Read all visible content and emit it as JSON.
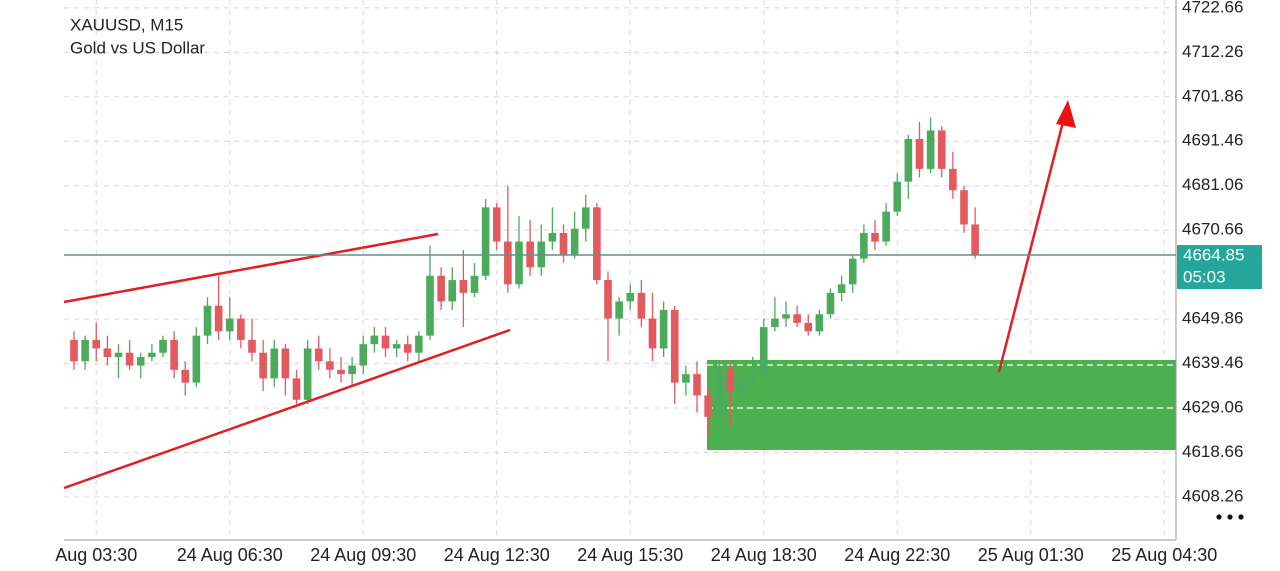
{
  "chart_data": {
    "type": "candlestick",
    "title": "XAUUSD, M15",
    "subtitle": "Gold vs US Dollar",
    "categories": [
      null,
      null,
      "Aug 03:30",
      null,
      null,
      null,
      null,
      null,
      null,
      null,
      null,
      null,
      null,
      null,
      "24 Aug 06:30",
      null,
      null,
      null,
      null,
      null,
      null,
      null,
      null,
      null,
      null,
      null,
      "24 Aug 09:30",
      null,
      null,
      null,
      null,
      null,
      null,
      null,
      null,
      null,
      null,
      null,
      "24 Aug 12:30",
      null,
      null,
      null,
      null,
      null,
      null,
      null,
      null,
      null,
      null,
      null,
      "24 Aug 15:30",
      null,
      null,
      null,
      null,
      null,
      null,
      null,
      null,
      null,
      null,
      null,
      "24 Aug 18:30",
      null,
      null,
      null,
      null,
      null,
      null,
      null,
      null,
      null,
      null,
      null,
      "24 Aug 22:30",
      null,
      null,
      null,
      null,
      null,
      null,
      null,
      null,
      null,
      null,
      null,
      "25 Aug 01:30",
      null,
      null,
      null,
      null,
      null,
      null,
      null,
      null,
      null,
      null,
      null,
      "25 Aug 04:30"
    ],
    "open": [
      4645,
      4640,
      4645,
      4643,
      4641,
      4642,
      4639,
      4641,
      4642,
      4645,
      4638,
      4635,
      4646,
      4653,
      4647,
      4650,
      4645,
      4642,
      4636,
      4643,
      4636,
      4631,
      4643,
      4640,
      4638,
      4637,
      4639,
      4644,
      4646,
      4643,
      4644,
      4642,
      4646,
      4660,
      4654,
      4659,
      4656,
      4660,
      4676,
      4668,
      4658,
      4668,
      4662,
      4668,
      4670,
      4665,
      4671,
      4676,
      4659,
      4650,
      4654,
      4656,
      4650,
      4643,
      4652,
      4635,
      4637,
      4632,
      4627,
      4638,
      4633,
      4636,
      4637,
      4648,
      4650,
      4651,
      4649,
      4647,
      4651,
      4656,
      4658,
      4664,
      4670,
      4668,
      4675,
      4682,
      4692,
      4685,
      4694,
      4685,
      4680,
      4672,
      null,
      null,
      null,
      null,
      null,
      null,
      null,
      null,
      null,
      null,
      null,
      null,
      null,
      null,
      null,
      null,
      null
    ],
    "high": [
      4647,
      4646,
      4649,
      4646,
      4644,
      4645,
      4642,
      4644,
      4646,
      4647,
      4640,
      4648,
      4655,
      4660,
      4655,
      4651,
      4650,
      4645,
      4645,
      4644,
      4638,
      4645,
      4646,
      4643,
      4641,
      4641,
      4646,
      4648,
      4648,
      4645,
      4646,
      4647,
      4667,
      4662,
      4662,
      4666,
      4663,
      4678,
      4677,
      4681,
      4674,
      4673,
      4672,
      4676,
      4672,
      4675,
      4679,
      4677,
      4661,
      4655,
      4658,
      4659,
      4656,
      4654,
      4653,
      4639,
      4640,
      4634,
      4640,
      4640,
      4638,
      4641,
      4650,
      4655,
      4654,
      4653,
      4651,
      4652,
      4657,
      4660,
      4665,
      4672,
      4673,
      4677,
      4684,
      4693,
      4696,
      4697,
      4695,
      4689,
      4681,
      4676,
      null,
      null,
      null,
      null,
      null,
      null,
      null,
      null,
      null,
      null,
      null,
      null,
      null,
      null,
      null,
      null,
      null
    ],
    "low": [
      4638,
      4638,
      4640,
      4639,
      4636,
      4638,
      4636,
      4640,
      4641,
      4636,
      4632,
      4634,
      4644,
      4645,
      4645,
      4643,
      4640,
      4633,
      4634,
      4632,
      4630,
      4630,
      4638,
      4636,
      4635,
      4634,
      4637,
      4642,
      4641,
      4641,
      4640,
      4640,
      4645,
      4652,
      4652,
      4648,
      4655,
      4659,
      4666,
      4656,
      4657,
      4660,
      4660,
      4666,
      4663,
      4664,
      4668,
      4658,
      4640,
      4646,
      4652,
      4648,
      4640,
      4641,
      4630,
      4632,
      4628,
      4622,
      4626,
      4625,
      4630,
      4634,
      4636,
      4647,
      4648,
      4648,
      4646,
      4646,
      4650,
      4654,
      4656,
      4663,
      4666,
      4667,
      4674,
      4678,
      4683,
      4684,
      4683,
      4678,
      4670,
      4664,
      null,
      null,
      null,
      null,
      null,
      null,
      null,
      null,
      null,
      null,
      null,
      null,
      null,
      null,
      null,
      null,
      null
    ],
    "close": [
      4640,
      4645,
      4643,
      4641,
      4642,
      4639,
      4641,
      4642,
      4645,
      4638,
      4635,
      4646,
      4653,
      4647,
      4650,
      4645,
      4642,
      4636,
      4643,
      4636,
      4631,
      4643,
      4640,
      4638,
      4637,
      4639,
      4644,
      4646,
      4643,
      4644,
      4642,
      4646,
      4660,
      4654,
      4659,
      4656,
      4660,
      4676,
      4668,
      4658,
      4668,
      4662,
      4668,
      4670,
      4665,
      4671,
      4676,
      4659,
      4650,
      4654,
      4656,
      4650,
      4643,
      4652,
      4635,
      4637,
      4632,
      4627,
      4638,
      4633,
      4636,
      4637,
      4648,
      4650,
      4651,
      4649,
      4647,
      4651,
      4656,
      4658,
      4664,
      4670,
      4668,
      4675,
      4682,
      4692,
      4685,
      4694,
      4685,
      4680,
      4672,
      4664.85,
      null,
      null,
      null,
      null,
      null,
      null,
      null,
      null,
      null,
      null,
      null,
      null,
      null,
      null,
      null,
      null,
      null
    ],
    "up_color": "#4caa5c",
    "down_color": "#e25a5e",
    "last_price": 4664.85,
    "countdown": "05:03",
    "price_line_color": "#5f8f8c",
    "price_label_color": "#26a69a",
    "ylim": [
      4598.2,
      4724.5
    ],
    "yticks": [
      4722.66,
      4712.26,
      4701.86,
      4691.46,
      4681.06,
      4670.66,
      4649.86,
      4639.46,
      4629.06,
      4618.66,
      4608.26
    ],
    "grid": true
  }
}
